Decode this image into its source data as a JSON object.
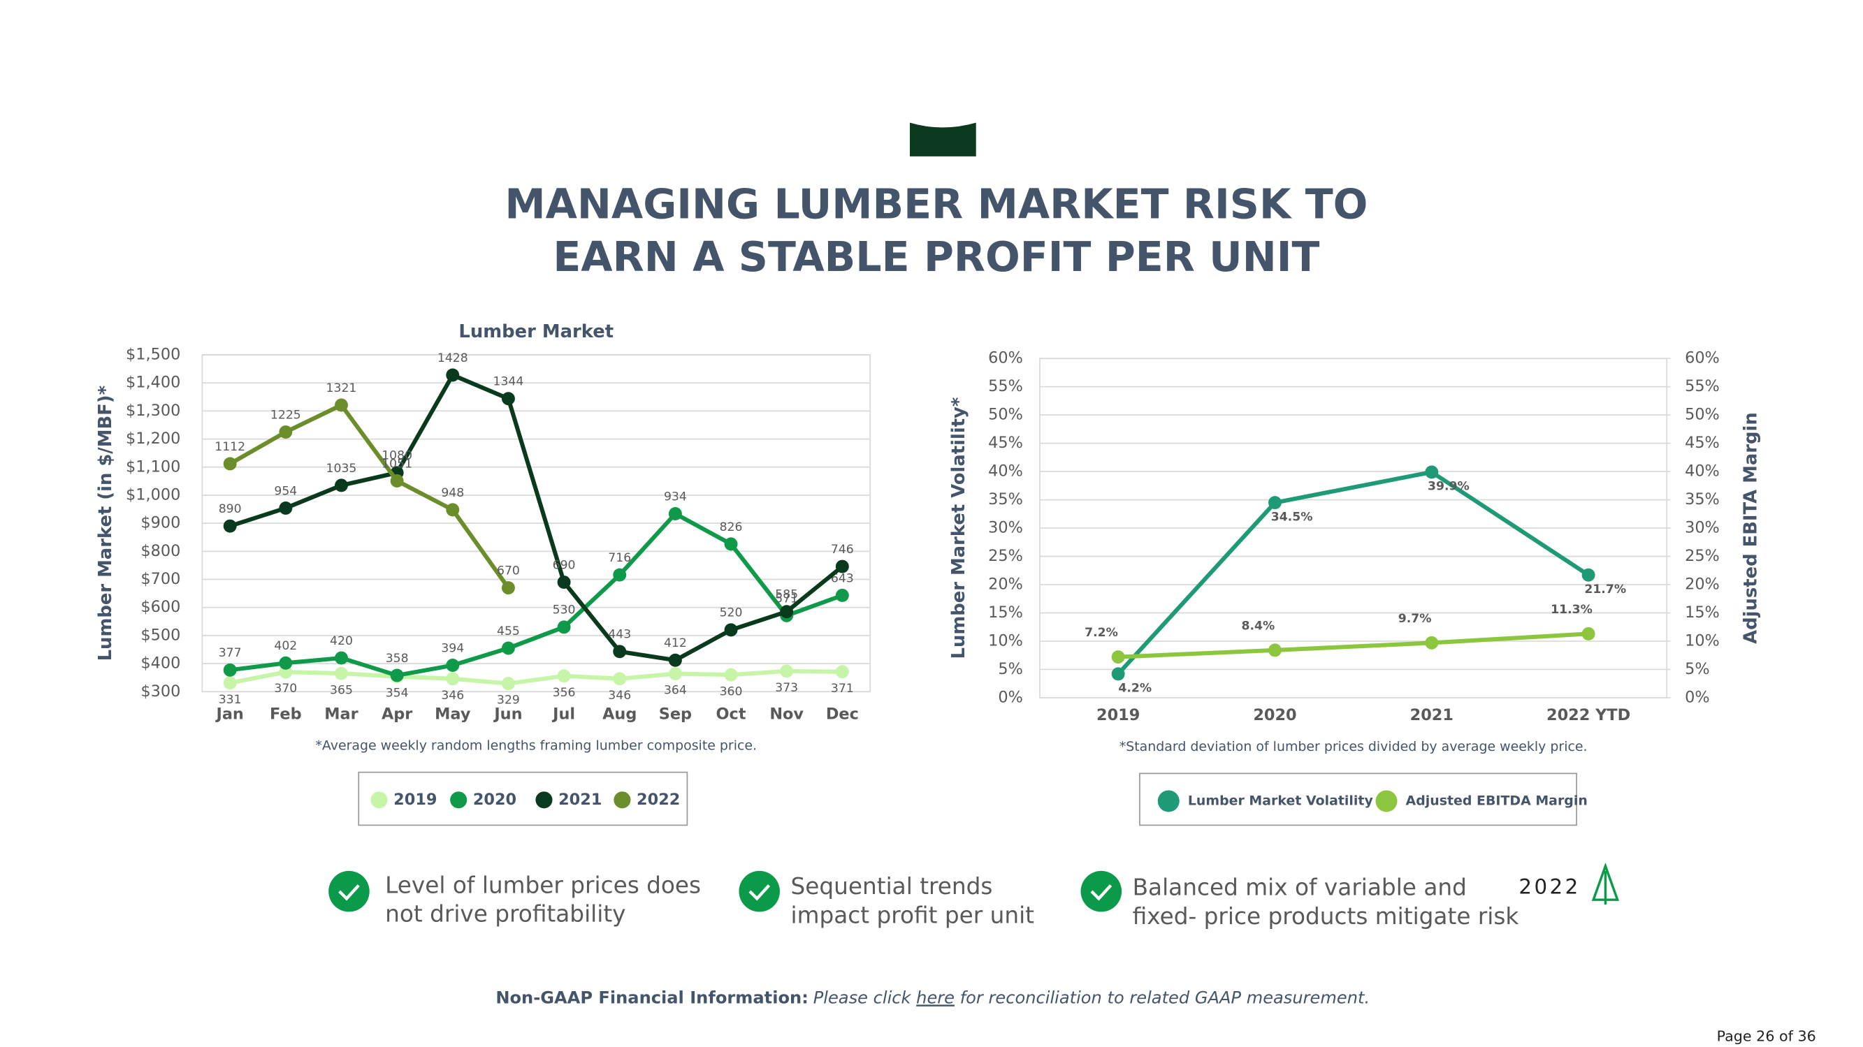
{
  "title": [
    "MANAGING LUMBER MARKET RISK TO",
    "EARN A STABLE PROFIT PER UNIT"
  ],
  "chart_data": [
    {
      "type": "line",
      "title": "Lumber Market",
      "ylabel": "Lumber Market  (in $/MBF)*",
      "footnote": "*Average weekly random lengths framing lumber composite price.",
      "categories": [
        "Jan",
        "Feb",
        "Mar",
        "Apr",
        "May",
        "Jun",
        "Jul",
        "Aug",
        "Sep",
        "Oct",
        "Nov",
        "Dec"
      ],
      "series": [
        {
          "name": "2019",
          "color": "#c6f5a8",
          "values": [
            331,
            370,
            365,
            354,
            346,
            329,
            356,
            346,
            364,
            360,
            373,
            371
          ]
        },
        {
          "name": "2020",
          "color": "#0f9a4a",
          "values": [
            377,
            402,
            420,
            358,
            394,
            455,
            530,
            716,
            934,
            826,
            571,
            643
          ]
        },
        {
          "name": "2021",
          "color": "#0a3a1e",
          "values": [
            890,
            954,
            1035,
            1080,
            1428,
            1344,
            690,
            443,
            412,
            520,
            585,
            746
          ]
        },
        {
          "name": "2022",
          "color": "#6b8e2a",
          "values": [
            1112,
            1225,
            1321,
            1051,
            948,
            670,
            null,
            null,
            null,
            null,
            null,
            null
          ]
        }
      ],
      "ylim": [
        300,
        1500
      ],
      "yticks": [
        {
          "value": 300,
          "label": "$300"
        },
        {
          "value": 400,
          "label": "$400"
        },
        {
          "value": 500,
          "label": "$500"
        },
        {
          "value": 600,
          "label": "$600"
        },
        {
          "value": 700,
          "label": "$700"
        },
        {
          "value": 800,
          "label": "$800"
        },
        {
          "value": 900,
          "label": "$900"
        },
        {
          "value": 1000,
          "label": "$1,000"
        },
        {
          "value": 1100,
          "label": "$1,100"
        },
        {
          "value": 1200,
          "label": "$1,200"
        },
        {
          "value": 1300,
          "label": "$1,300"
        },
        {
          "value": 1400,
          "label": "$1,400"
        },
        {
          "value": 1500,
          "label": "$1,500"
        }
      ],
      "grid": true,
      "legend": "bottom"
    },
    {
      "type": "line",
      "ylabel": "Lumber Market Volatility*",
      "y2label": "Adjusted EBITA Margin",
      "footnote": "*Standard deviation of lumber prices divided by average weekly price.",
      "categories": [
        "2019",
        "2020",
        "2021",
        "2022 YTD"
      ],
      "series": [
        {
          "name": "Lumber Market Volatility",
          "color": "#1f9a76",
          "values": [
            4.2,
            34.5,
            39.9,
            21.7
          ],
          "value_labels": [
            "4.2%",
            "34.5%",
            "39.9%",
            "21.7%"
          ]
        },
        {
          "name": "Adjusted EBITDA Margin",
          "color": "#8cc63f",
          "axis": "y2",
          "values": [
            7.2,
            8.4,
            9.7,
            11.3
          ],
          "value_labels": [
            "7.2%",
            "8.4%",
            "9.7%",
            "11.3%"
          ]
        }
      ],
      "ylim": [
        0,
        60
      ],
      "yticks": [
        {
          "value": 0,
          "label": "0%"
        },
        {
          "value": 5,
          "label": "5%"
        },
        {
          "value": 10,
          "label": "10%"
        },
        {
          "value": 15,
          "label": "15%"
        },
        {
          "value": 20,
          "label": "20%"
        },
        {
          "value": 25,
          "label": "25%"
        },
        {
          "value": 30,
          "label": "30%"
        },
        {
          "value": 35,
          "label": "35%"
        },
        {
          "value": 40,
          "label": "40%"
        },
        {
          "value": 45,
          "label": "45%"
        },
        {
          "value": 50,
          "label": "50%"
        },
        {
          "value": 55,
          "label": "55%"
        },
        {
          "value": 60,
          "label": "60%"
        }
      ],
      "y2lim": [
        0,
        60
      ],
      "y2ticks": [
        {
          "value": 0,
          "label": "0%"
        },
        {
          "value": 5,
          "label": "5%"
        },
        {
          "value": 10,
          "label": "10%"
        },
        {
          "value": 15,
          "label": "15%"
        },
        {
          "value": 20,
          "label": "20%"
        },
        {
          "value": 25,
          "label": "25%"
        },
        {
          "value": 30,
          "label": "30%"
        },
        {
          "value": 35,
          "label": "35%"
        },
        {
          "value": 40,
          "label": "40%"
        },
        {
          "value": 45,
          "label": "45%"
        },
        {
          "value": 50,
          "label": "50%"
        },
        {
          "value": 55,
          "label": "55%"
        },
        {
          "value": 60,
          "label": "60%"
        }
      ],
      "grid": true,
      "legend": "bottom"
    }
  ],
  "bullets": [
    [
      "Level of lumber prices does",
      "not drive profitability"
    ],
    [
      "Sequential trends",
      "impact profit per unit"
    ],
    [
      "Balanced mix of variable and",
      "fixed- price products mitigate risk"
    ]
  ],
  "logo": "2022",
  "non_gaap": {
    "label": "Non-GAAP Financial Information:",
    "text1": "Please click ",
    "link": "here",
    "text2": " for reconciliation to related GAAP measurement."
  },
  "page": "Page 26 of 36"
}
